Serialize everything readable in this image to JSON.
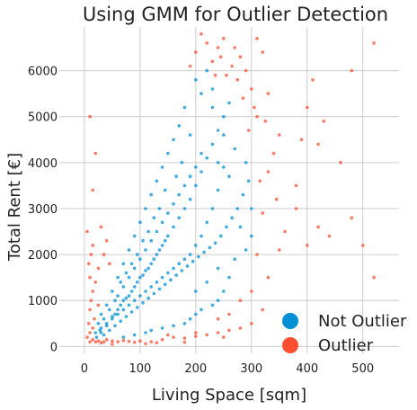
{
  "chart_data": {
    "type": "scatter",
    "title": "Using GMM for Outlier Detection",
    "xlabel": "Living Space [sqm]",
    "ylabel": "Total Rent [€]",
    "xlim": [
      -45,
      565
    ],
    "ylim": [
      -150,
      6950
    ],
    "xticks": [
      0,
      100,
      200,
      300,
      400,
      500
    ],
    "yticks": [
      0,
      1000,
      2000,
      3000,
      4000,
      5000,
      6000
    ],
    "grid": true,
    "legend_position": "bottom-right",
    "series": [
      {
        "name": "Not Outlier",
        "color": "#008fd5",
        "points": [
          [
            30,
            300
          ],
          [
            40,
            500
          ],
          [
            50,
            650
          ],
          [
            55,
            700
          ],
          [
            60,
            800
          ],
          [
            65,
            900
          ],
          [
            70,
            1000
          ],
          [
            75,
            1050
          ],
          [
            80,
            1100
          ],
          [
            85,
            1200
          ],
          [
            90,
            1300
          ],
          [
            95,
            1400
          ],
          [
            100,
            1500
          ],
          [
            105,
            1550
          ],
          [
            110,
            1650
          ],
          [
            115,
            1700
          ],
          [
            120,
            1800
          ],
          [
            125,
            1900
          ],
          [
            130,
            2000
          ],
          [
            135,
            2100
          ],
          [
            140,
            2200
          ],
          [
            145,
            2300
          ],
          [
            150,
            2400
          ],
          [
            160,
            2600
          ],
          [
            170,
            2800
          ],
          [
            180,
            3000
          ],
          [
            190,
            3200
          ],
          [
            200,
            3500
          ],
          [
            210,
            3800
          ],
          [
            220,
            4100
          ],
          [
            230,
            4400
          ],
          [
            240,
            4700
          ],
          [
            250,
            5000
          ],
          [
            260,
            5300
          ],
          [
            200,
            5800
          ],
          [
            220,
            6000
          ],
          [
            230,
            5600
          ],
          [
            180,
            5200
          ],
          [
            170,
            4800
          ],
          [
            160,
            4500
          ],
          [
            150,
            4200
          ],
          [
            140,
            3900
          ],
          [
            130,
            3600
          ],
          [
            120,
            3300
          ],
          [
            110,
            3000
          ],
          [
            100,
            2700
          ],
          [
            90,
            2400
          ],
          [
            80,
            2100
          ],
          [
            70,
            1800
          ],
          [
            60,
            1500
          ],
          [
            50,
            1200
          ],
          [
            40,
            900
          ],
          [
            30,
            700
          ],
          [
            25,
            500
          ],
          [
            20,
            300
          ],
          [
            22,
            200
          ],
          [
            35,
            250
          ],
          [
            45,
            350
          ],
          [
            55,
            450
          ],
          [
            65,
            550
          ],
          [
            75,
            650
          ],
          [
            85,
            750
          ],
          [
            95,
            850
          ],
          [
            105,
            950
          ],
          [
            115,
            1050
          ],
          [
            125,
            1150
          ],
          [
            135,
            1250
          ],
          [
            145,
            1350
          ],
          [
            155,
            1450
          ],
          [
            165,
            1550
          ],
          [
            175,
            1650
          ],
          [
            185,
            1750
          ],
          [
            195,
            1850
          ],
          [
            205,
            1950
          ],
          [
            215,
            2050
          ],
          [
            225,
            2150
          ],
          [
            235,
            2250
          ],
          [
            245,
            2400
          ],
          [
            255,
            2600
          ],
          [
            265,
            2800
          ],
          [
            275,
            3000
          ],
          [
            285,
            3300
          ],
          [
            295,
            3600
          ],
          [
            290,
            4000
          ],
          [
            270,
            4300
          ],
          [
            250,
            3900
          ],
          [
            240,
            3400
          ],
          [
            230,
            3000
          ],
          [
            220,
            2700
          ],
          [
            210,
            2400
          ],
          [
            200,
            2200
          ],
          [
            190,
            2000
          ],
          [
            180,
            1900
          ],
          [
            170,
            1800
          ],
          [
            160,
            1700
          ],
          [
            150,
            1600
          ],
          [
            140,
            1500
          ],
          [
            130,
            1400
          ],
          [
            120,
            1300
          ],
          [
            110,
            1200
          ],
          [
            100,
            1100
          ],
          [
            90,
            1000
          ],
          [
            80,
            900
          ],
          [
            70,
            800
          ],
          [
            60,
            700
          ],
          [
            50,
            600
          ],
          [
            40,
            450
          ],
          [
            30,
            400
          ],
          [
            28,
            350
          ],
          [
            60,
            1100
          ],
          [
            70,
            1300
          ],
          [
            80,
            1500
          ],
          [
            90,
            1700
          ],
          [
            100,
            1900
          ],
          [
            110,
            2100
          ],
          [
            120,
            2300
          ],
          [
            130,
            2500
          ],
          [
            140,
            2700
          ],
          [
            150,
            2900
          ],
          [
            160,
            3100
          ],
          [
            170,
            3300
          ],
          [
            180,
            3500
          ],
          [
            190,
            3700
          ],
          [
            200,
            3900
          ],
          [
            210,
            4200
          ],
          [
            240,
            4000
          ],
          [
            260,
            3700
          ],
          [
            280,
            2600
          ],
          [
            300,
            2400
          ],
          [
            290,
            2100
          ],
          [
            270,
            1900
          ],
          [
            260,
            1500
          ],
          [
            250,
            1200
          ],
          [
            240,
            1000
          ],
          [
            230,
            900
          ],
          [
            210,
            800
          ],
          [
            200,
            700
          ],
          [
            190,
            600
          ],
          [
            180,
            500
          ],
          [
            160,
            450
          ],
          [
            140,
            400
          ],
          [
            120,
            350
          ],
          [
            110,
            300
          ],
          [
            90,
            250
          ],
          [
            70,
            200
          ],
          [
            200,
            1200
          ],
          [
            220,
            1400
          ],
          [
            240,
            1700
          ],
          [
            300,
            3000
          ],
          [
            250,
            4600
          ],
          [
            230,
            5200
          ],
          [
            210,
            5500
          ],
          [
            190,
            4600
          ],
          [
            175,
            4000
          ],
          [
            165,
            3700
          ],
          [
            145,
            3400
          ],
          [
            135,
            3000
          ],
          [
            125,
            2800
          ],
          [
            115,
            2500
          ],
          [
            105,
            2300
          ],
          [
            95,
            2000
          ],
          [
            85,
            1800
          ],
          [
            75,
            1600
          ],
          [
            65,
            1400
          ],
          [
            55,
            1000
          ],
          [
            45,
            800
          ],
          [
            35,
            600
          ]
        ]
      },
      {
        "name": "Outlier",
        "color": "#fc4f30",
        "points": [
          [
            5,
            200
          ],
          [
            8,
            500
          ],
          [
            10,
            800
          ],
          [
            12,
            1000
          ],
          [
            15,
            1200
          ],
          [
            10,
            1500
          ],
          [
            8,
            1800
          ],
          [
            12,
            2000
          ],
          [
            15,
            2200
          ],
          [
            5,
            2500
          ],
          [
            10,
            300
          ],
          [
            15,
            150
          ],
          [
            20,
            100
          ],
          [
            25,
            120
          ],
          [
            30,
            80
          ],
          [
            35,
            100
          ],
          [
            40,
            150
          ],
          [
            50,
            120
          ],
          [
            60,
            100
          ],
          [
            70,
            130
          ],
          [
            80,
            110
          ],
          [
            90,
            90
          ],
          [
            100,
            120
          ],
          [
            120,
            100
          ],
          [
            140,
            150
          ],
          [
            160,
            200
          ],
          [
            180,
            180
          ],
          [
            200,
            220
          ],
          [
            220,
            250
          ],
          [
            240,
            300
          ],
          [
            260,
            350
          ],
          [
            280,
            400
          ],
          [
            300,
            500
          ],
          [
            320,
            800
          ],
          [
            330,
            1500
          ],
          [
            350,
            2100
          ],
          [
            360,
            2500
          ],
          [
            380,
            3000
          ],
          [
            400,
            2200
          ],
          [
            420,
            2600
          ],
          [
            440,
            2400
          ],
          [
            480,
            2800
          ],
          [
            520,
            1500
          ],
          [
            500,
            2200
          ],
          [
            460,
            4000
          ],
          [
            420,
            4400
          ],
          [
            400,
            5200
          ],
          [
            380,
            3500
          ],
          [
            350,
            4600
          ],
          [
            340,
            4200
          ],
          [
            330,
            3800
          ],
          [
            310,
            5000
          ],
          [
            300,
            5600
          ],
          [
            290,
            6000
          ],
          [
            280,
            6300
          ],
          [
            270,
            6500
          ],
          [
            250,
            6700
          ],
          [
            240,
            6500
          ],
          [
            230,
            6200
          ],
          [
            220,
            6600
          ],
          [
            210,
            6800
          ],
          [
            200,
            6400
          ],
          [
            190,
            6100
          ],
          [
            310,
            6700
          ],
          [
            320,
            6400
          ],
          [
            330,
            5500
          ],
          [
            410,
            5800
          ],
          [
            25,
            1700
          ],
          [
            15,
            3400
          ],
          [
            10,
            5000
          ],
          [
            30,
            2600
          ],
          [
            20,
            4200
          ],
          [
            300,
            1200
          ],
          [
            310,
            2000
          ],
          [
            320,
            2900
          ],
          [
            280,
            1000
          ],
          [
            260,
            700
          ],
          [
            240,
            600
          ],
          [
            250,
            200
          ],
          [
            200,
            300
          ],
          [
            150,
            250
          ],
          [
            180,
            90
          ],
          [
            130,
            80
          ],
          [
            110,
            60
          ],
          [
            50,
            50
          ],
          [
            40,
            2300
          ],
          [
            35,
            2000
          ],
          [
            45,
            1800
          ],
          [
            20,
            1400
          ],
          [
            25,
            900
          ],
          [
            18,
            600
          ],
          [
            15,
            400
          ],
          [
            10,
            100
          ],
          [
            520,
            6600
          ],
          [
            480,
            6000
          ],
          [
            430,
            4900
          ],
          [
            390,
            4500
          ],
          [
            345,
            3200
          ],
          [
            325,
            4900
          ],
          [
            315,
            3600
          ],
          [
            305,
            5200
          ],
          [
            295,
            4700
          ],
          [
            285,
            5400
          ],
          [
            275,
            5800
          ],
          [
            265,
            6100
          ],
          [
            255,
            5900
          ],
          [
            245,
            6300
          ],
          [
            235,
            5900
          ]
        ]
      }
    ]
  }
}
